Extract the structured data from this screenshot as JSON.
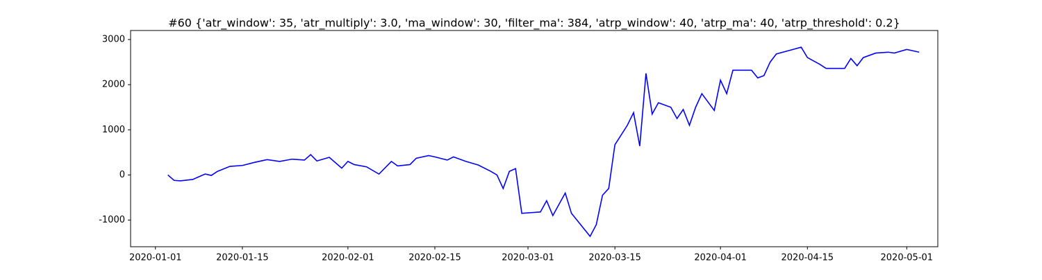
{
  "chart_data": {
    "type": "line",
    "title": "#60 {'atr_window': 35, 'atr_multiply': 3.0, 'ma_window': 30, 'filter_ma': 384, 'atrp_window': 40, 'atrp_ma': 40, 'atrp_threshold': 0.2}",
    "x": [
      "2020-01-03",
      "2020-01-04",
      "2020-01-05",
      "2020-01-07",
      "2020-01-09",
      "2020-01-10",
      "2020-01-11",
      "2020-01-13",
      "2020-01-15",
      "2020-01-17",
      "2020-01-19",
      "2020-01-21",
      "2020-01-23",
      "2020-01-25",
      "2020-01-26",
      "2020-01-27",
      "2020-01-29",
      "2020-01-31",
      "2020-02-01",
      "2020-02-02",
      "2020-02-04",
      "2020-02-06",
      "2020-02-08",
      "2020-02-09",
      "2020-02-11",
      "2020-02-12",
      "2020-02-14",
      "2020-02-15",
      "2020-02-17",
      "2020-02-18",
      "2020-02-20",
      "2020-02-22",
      "2020-02-24",
      "2020-02-25",
      "2020-02-26",
      "2020-02-27",
      "2020-02-28",
      "2020-02-29",
      "2020-03-03",
      "2020-03-04",
      "2020-03-05",
      "2020-03-06",
      "2020-03-07",
      "2020-03-08",
      "2020-03-11",
      "2020-03-12",
      "2020-03-13",
      "2020-03-14",
      "2020-03-15",
      "2020-03-17",
      "2020-03-18",
      "2020-03-19",
      "2020-03-20",
      "2020-03-21",
      "2020-03-22",
      "2020-03-24",
      "2020-03-25",
      "2020-03-26",
      "2020-03-27",
      "2020-03-28",
      "2020-03-29",
      "2020-03-31",
      "2020-04-01",
      "2020-04-02",
      "2020-04-03",
      "2020-04-06",
      "2020-04-07",
      "2020-04-08",
      "2020-04-09",
      "2020-04-10",
      "2020-04-14",
      "2020-04-15",
      "2020-04-17",
      "2020-04-18",
      "2020-04-21",
      "2020-04-22",
      "2020-04-23",
      "2020-04-24",
      "2020-04-26",
      "2020-04-28",
      "2020-04-29",
      "2020-05-01",
      "2020-05-03"
    ],
    "series": [
      {
        "color": "#0000ff",
        "values": [
          0,
          -120,
          -130,
          -100,
          20,
          -10,
          80,
          190,
          210,
          280,
          340,
          300,
          350,
          330,
          450,
          310,
          390,
          150,
          300,
          230,
          180,
          20,
          300,
          200,
          230,
          370,
          430,
          400,
          330,
          400,
          300,
          220,
          80,
          0,
          -300,
          80,
          140,
          -850,
          -820,
          -570,
          -900,
          -650,
          -400,
          -850,
          -1360,
          -1100,
          -450,
          -300,
          670,
          1100,
          1380,
          640,
          2250,
          1350,
          1600,
          1500,
          1250,
          1450,
          1100,
          1500,
          1800,
          1430,
          2100,
          1800,
          2320,
          2320,
          2150,
          2200,
          2500,
          2680,
          2830,
          2600,
          2450,
          2360,
          2360,
          2580,
          2420,
          2600,
          2700,
          2720,
          2700,
          2780,
          2720
        ]
      }
    ],
    "xlim": [
      "2019-12-28",
      "2020-05-06"
    ],
    "xticks": [
      "2020-01-01",
      "2020-01-15",
      "2020-02-01",
      "2020-02-15",
      "2020-03-01",
      "2020-03-15",
      "2020-04-01",
      "2020-04-15",
      "2020-05-01"
    ],
    "ylim": [
      -1590,
      3200
    ],
    "yticks": [
      -1000,
      0,
      1000,
      2000,
      3000
    ]
  }
}
